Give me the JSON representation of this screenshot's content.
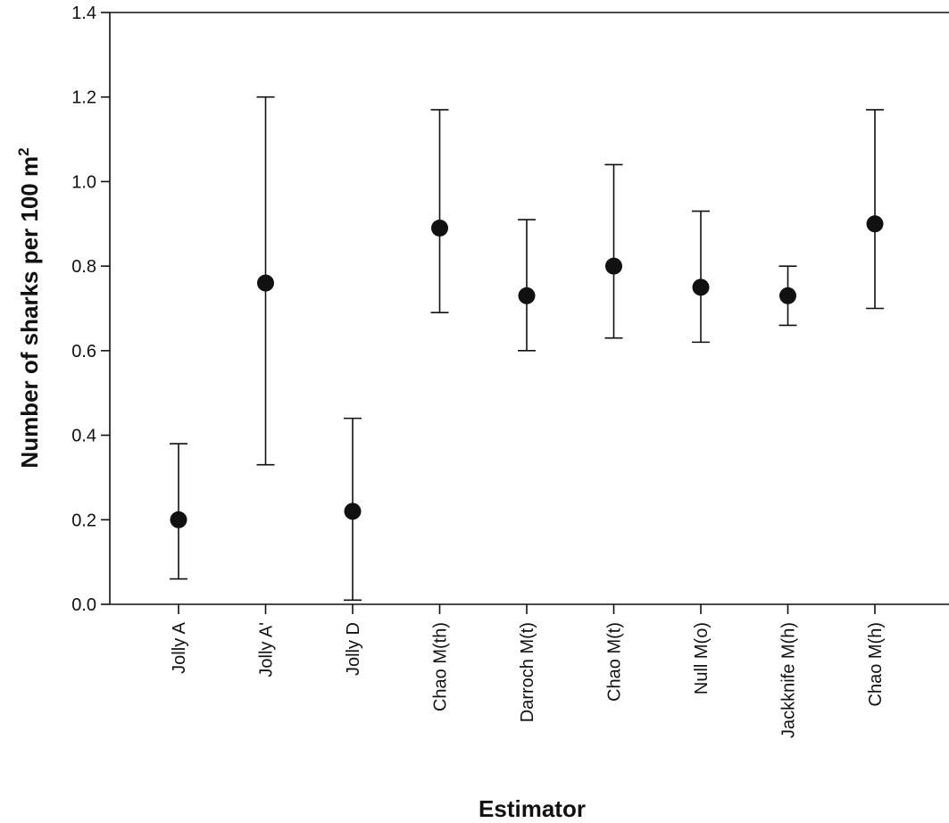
{
  "chart_data": {
    "type": "scatter",
    "error_bars": true,
    "title": "",
    "xlabel": "Estimator",
    "ylabel_prefix": "Number of sharks per 100 m",
    "ylabel_superscript": "2",
    "ylim": [
      0.0,
      1.4
    ],
    "yticks": [
      "0.0",
      "0.2",
      "0.4",
      "0.6",
      "0.8",
      "1.0",
      "1.2",
      "1.4"
    ],
    "grid": false,
    "legend": "none",
    "marker_color": "#111111",
    "categories": [
      "Jolly A",
      "Jolly A'",
      "Jolly D",
      "Chao M(th)",
      "Darroch M(t)",
      "Chao M(t)",
      "Null M(o)",
      "Jackknife M(h)",
      "Chao M(h)"
    ],
    "values": [
      0.2,
      0.76,
      0.22,
      0.89,
      0.73,
      0.8,
      0.75,
      0.73,
      0.9
    ],
    "lower": [
      0.06,
      0.33,
      0.01,
      0.69,
      0.6,
      0.63,
      0.62,
      0.66,
      0.7
    ],
    "upper": [
      0.38,
      1.2,
      0.44,
      1.17,
      0.91,
      1.04,
      0.93,
      0.8,
      1.17
    ]
  }
}
